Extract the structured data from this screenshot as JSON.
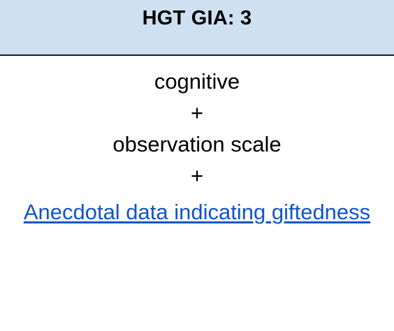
{
  "header": {
    "title": "HGT GIA: 3"
  },
  "content": {
    "line_1": "cognitive",
    "plus_1": "+",
    "line_2": "observation scale",
    "plus_2": "+",
    "link_text": "Anecdotal data indicating giftedness"
  },
  "colors": {
    "header_background": "#cfe0f1",
    "link": "#1155cc",
    "divider": "#1a1a1a"
  }
}
